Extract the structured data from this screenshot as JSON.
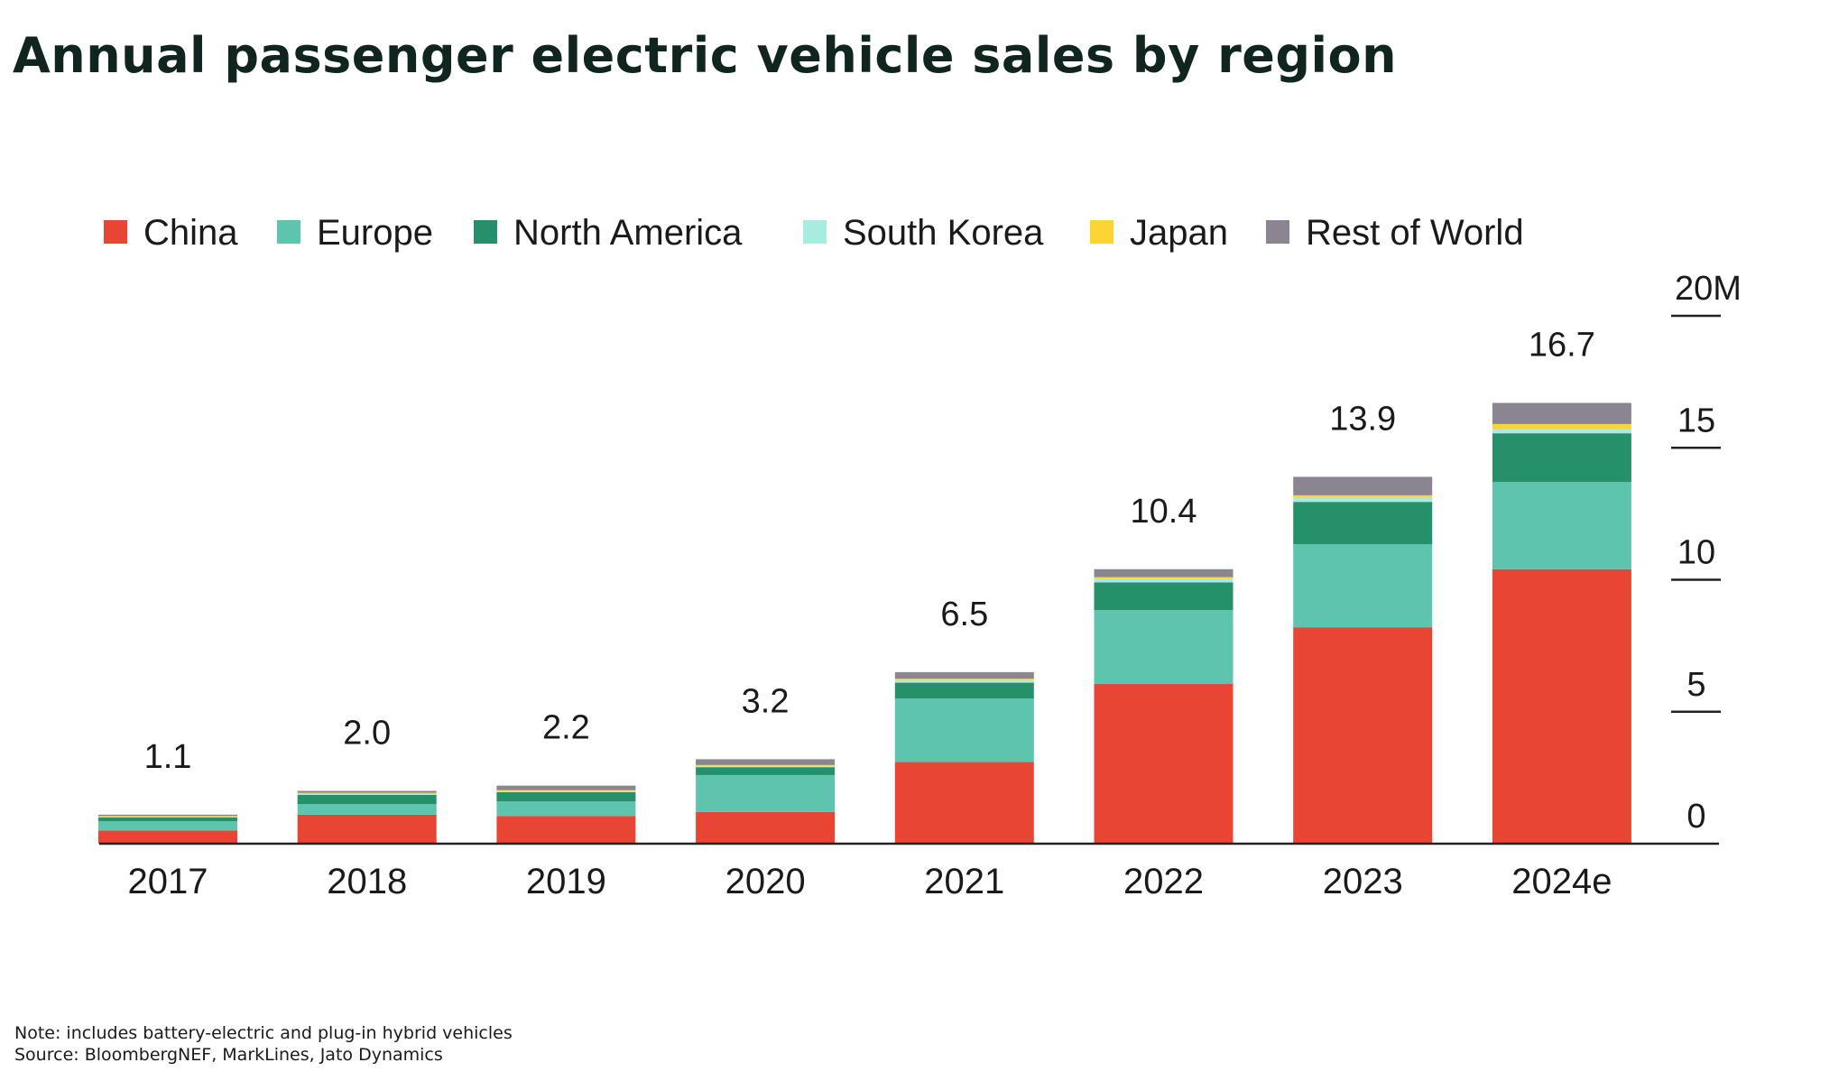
{
  "chart_data": {
    "type": "bar",
    "stacked": true,
    "title": "Annual passenger electric vehicle sales by region",
    "categories": [
      "2017",
      "2018",
      "2019",
      "2020",
      "2021",
      "2022",
      "2023",
      "2024e"
    ],
    "totals": [
      "1.1",
      "2.0",
      "2.2",
      "3.2",
      "6.5",
      "10.4",
      "13.9",
      "16.7"
    ],
    "series": [
      {
        "name": "China",
        "color": "#e84535",
        "values": [
          0.5,
          1.1,
          1.05,
          1.2,
          3.1,
          6.05,
          8.2,
          10.4
        ]
      },
      {
        "name": "Europe",
        "color": "#5fc4ad",
        "values": [
          0.35,
          0.4,
          0.55,
          1.4,
          2.4,
          2.8,
          3.15,
          3.3
        ]
      },
      {
        "name": "North America",
        "color": "#26906a",
        "values": [
          0.15,
          0.35,
          0.35,
          0.3,
          0.6,
          1.05,
          1.6,
          1.85
        ]
      },
      {
        "name": "South Korea",
        "color": "#a8ecdf",
        "values": [
          0.02,
          0.03,
          0.04,
          0.05,
          0.1,
          0.15,
          0.15,
          0.15
        ]
      },
      {
        "name": "Japan",
        "color": "#fcd535",
        "values": [
          0.03,
          0.05,
          0.04,
          0.03,
          0.05,
          0.05,
          0.1,
          0.2
        ]
      },
      {
        "name": "Rest of World",
        "color": "#8a8590",
        "values": [
          0.05,
          0.07,
          0.17,
          0.22,
          0.25,
          0.3,
          0.7,
          0.8
        ]
      }
    ],
    "yticks": [
      "0",
      "5",
      "10",
      "15",
      "20M"
    ],
    "ytick_values": [
      0,
      5,
      10,
      15,
      20
    ],
    "ylim": [
      0,
      20
    ],
    "yaxis_position": "right",
    "legend_position": "top",
    "grid": false,
    "xlabel": "",
    "ylabel": ""
  },
  "notes": {
    "note": "Note: includes battery-electric and plug-in hybrid vehicles",
    "source": "Source: BloombergNEF, MarkLines, Jato Dynamics"
  }
}
